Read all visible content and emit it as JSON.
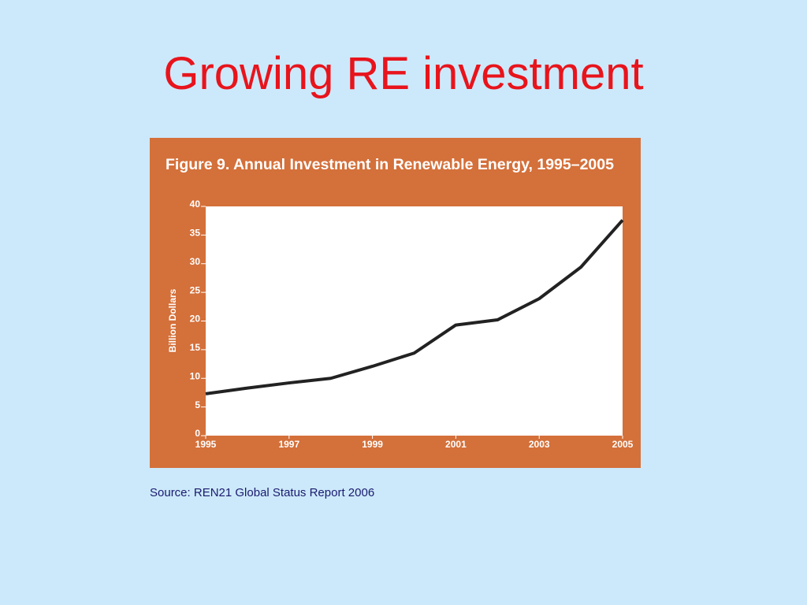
{
  "slide_title": "Growing RE investment",
  "source": "Source: REN21 Global Status Report 2006",
  "chart_data": {
    "type": "line",
    "title": "Figure 9. Annual Investment in Renewable Energy, 1995–2005",
    "ylabel": "Billion Dollars",
    "x": [
      1995,
      1996,
      1997,
      1998,
      1999,
      2000,
      2001,
      2002,
      2003,
      2004,
      2005
    ],
    "values": [
      7.3,
      8.3,
      9.2,
      10.0,
      12.1,
      14.4,
      19.3,
      20.2,
      23.9,
      29.4,
      37.6
    ],
    "color": "#222222",
    "xlim": [
      1995,
      2005
    ],
    "xticks": [
      1995,
      1997,
      1999,
      2001,
      2003,
      2005
    ],
    "ylim": [
      0,
      40
    ],
    "yticks": [
      0,
      5,
      10,
      15,
      20,
      25,
      30,
      35,
      40
    ]
  }
}
